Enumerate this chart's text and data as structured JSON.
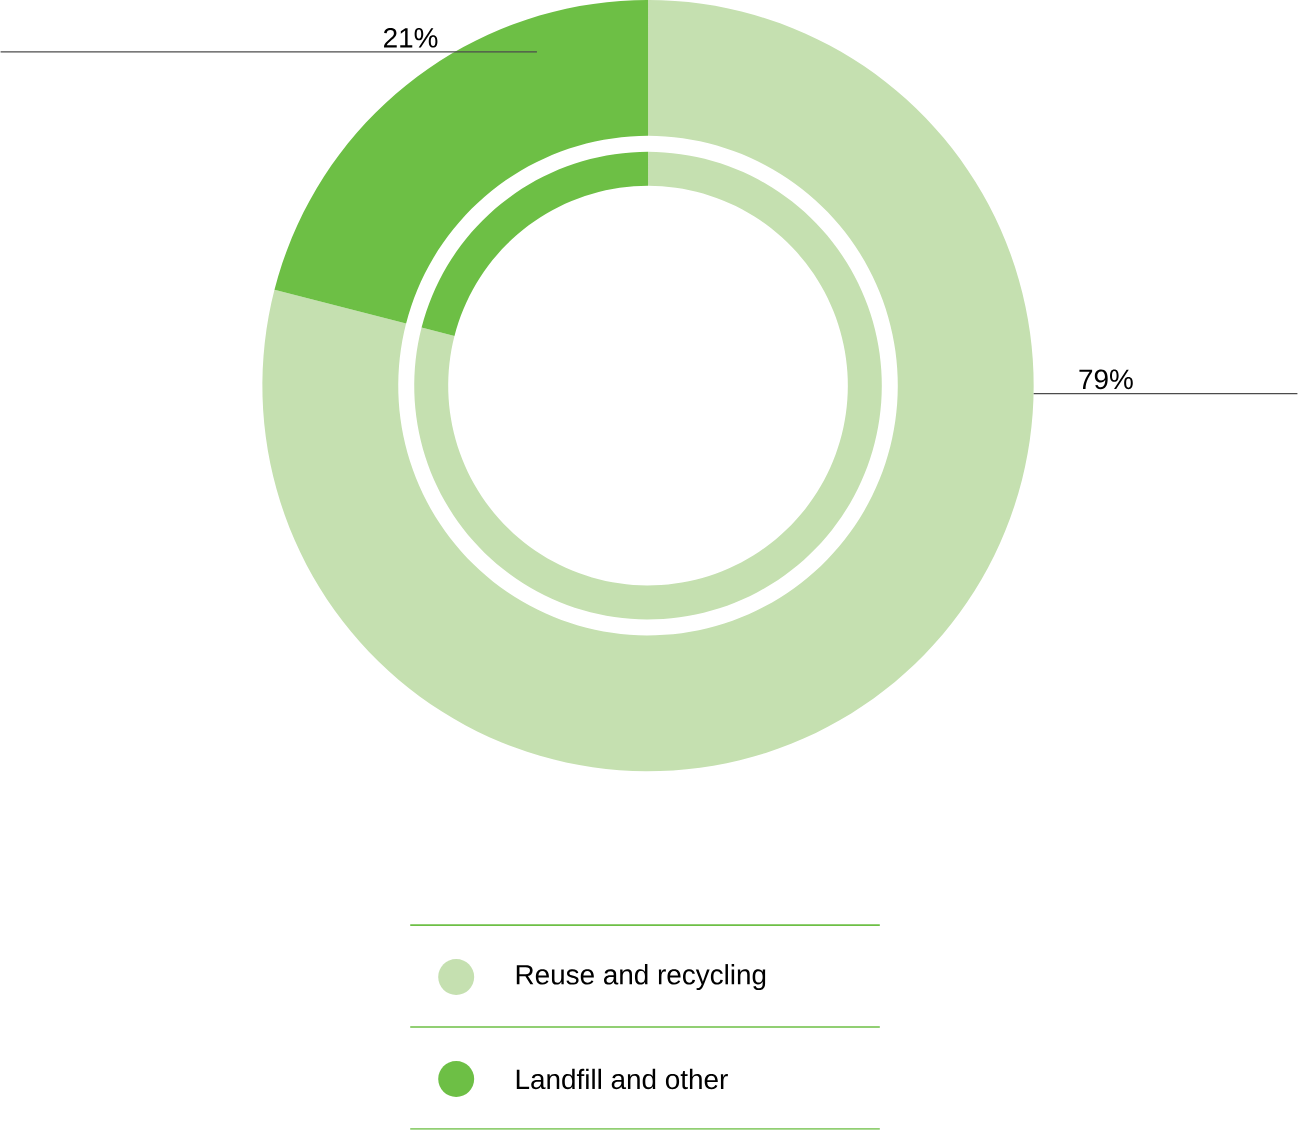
{
  "chart_data": {
    "type": "donut",
    "categories": [
      "Reuse and recycling",
      "Landfill and other"
    ],
    "series": [
      {
        "values": [
          79,
          21
        ],
        "colors": [
          "#c5e0b0",
          "#6dbf45"
        ],
        "value_labels": [
          "79%",
          "21%"
        ]
      },
      {
        "values": [
          79,
          21
        ],
        "colors": [
          "#c5e0b0",
          "#6dbf45"
        ]
      }
    ],
    "legend": "bottom"
  }
}
